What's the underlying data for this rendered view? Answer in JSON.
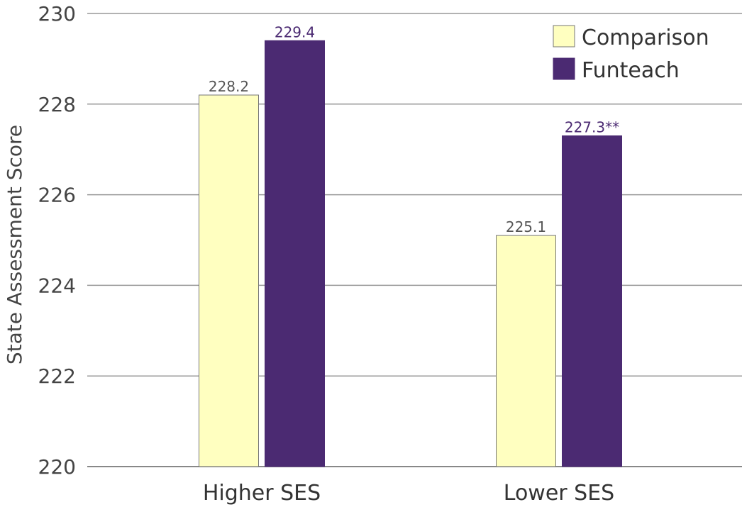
{
  "chart_data": {
    "type": "bar",
    "ylabel": "State Assessment Score",
    "xlabel": "",
    "ylim": [
      220,
      230
    ],
    "yticks": [
      "220",
      "222",
      "224",
      "226",
      "228",
      "230"
    ],
    "categories": [
      "Higher SES",
      "Lower SES"
    ],
    "series": [
      {
        "name": "Comparison",
        "values": [
          228.2,
          225.1
        ],
        "labels": [
          "228.2",
          "225.1"
        ],
        "color": "#FFFFC0",
        "label_color": "#555555"
      },
      {
        "name": "Funteach",
        "values": [
          229.4,
          227.3
        ],
        "labels": [
          "229.4",
          "227.3**"
        ],
        "color": "#4B2A72",
        "label_color": "#4B2A72"
      }
    ],
    "grid": true,
    "legend": "top-right"
  }
}
